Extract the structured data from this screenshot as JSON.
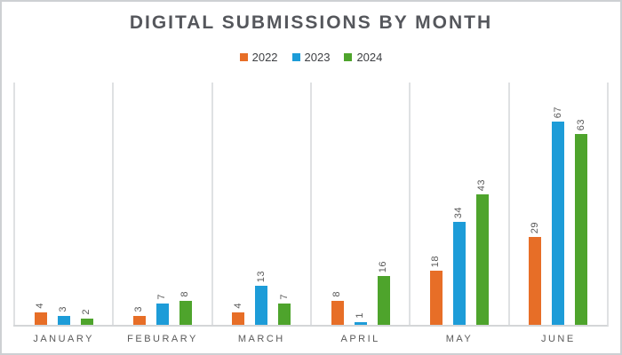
{
  "chart_data": {
    "type": "bar",
    "title": "DIGITAL SUBMISSIONS BY MONTH",
    "categories": [
      "JANUARY",
      "FEBURARY",
      "MARCH",
      "APRIL",
      "MAY",
      "JUNE"
    ],
    "series": [
      {
        "name": "2022",
        "color": "#E76E27",
        "values": [
          4,
          3,
          4,
          8,
          18,
          29
        ]
      },
      {
        "name": "2023",
        "color": "#1D9CD8",
        "values": [
          3,
          7,
          13,
          1,
          34,
          67
        ]
      },
      {
        "name": "2024",
        "color": "#4EA42C",
        "values": [
          2,
          8,
          7,
          16,
          43,
          63
        ]
      }
    ],
    "xlabel": "",
    "ylabel": "",
    "ylim": [
      0,
      80
    ],
    "legend_position": "top-center",
    "grid": "vertical-panel-dividers-only",
    "value_labels": "above-bars-rotated-90"
  },
  "styles": {
    "title_color": "#55575C",
    "value_label_color": "#595959",
    "month_label_color": "#5A5A5A",
    "axis_line_color": "#D4D6D8",
    "divider_color": "#DFE1E3",
    "frame_border_color": "#CDD0D3",
    "background": "#FFFFFF"
  }
}
